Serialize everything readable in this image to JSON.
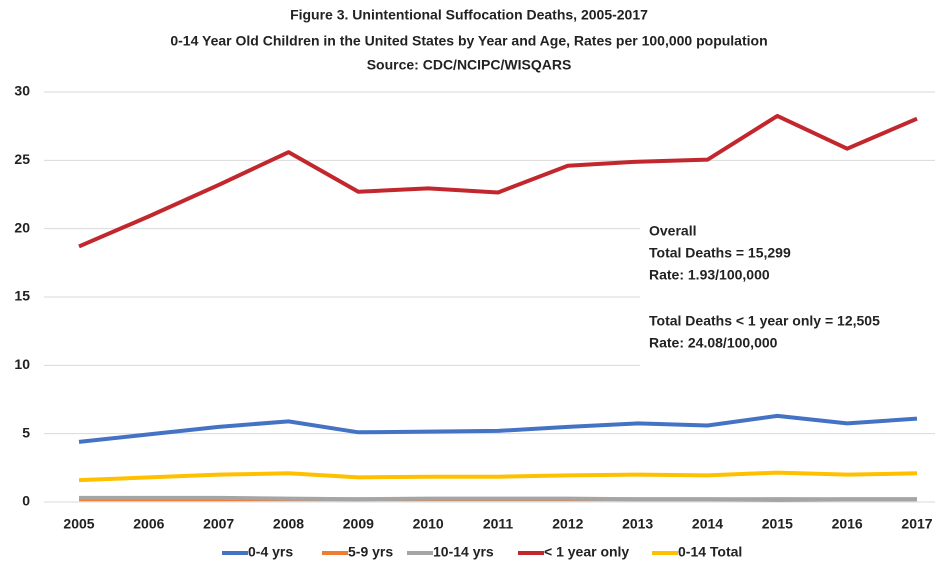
{
  "chart_data": {
    "type": "line",
    "title": [
      "Figure 3. Unintentional Suffocation Deaths, 2005-2017",
      "0-14 Year Old Children in the United States by Year and Age, Rates per 100,000 population",
      "Source: CDC/NCIPC/WISQARS"
    ],
    "categories": [
      "2005",
      "2006",
      "2007",
      "2008",
      "2009",
      "2010",
      "2011",
      "2012",
      "2013",
      "2014",
      "2015",
      "2016",
      "2017"
    ],
    "series": [
      {
        "name": "0-4 yrs",
        "color": "#4472c4",
        "values": [
          4.4,
          4.95,
          5.5,
          5.9,
          5.1,
          5.15,
          5.2,
          5.5,
          5.75,
          5.6,
          6.3,
          5.75,
          6.1
        ]
      },
      {
        "name": "5-9 yrs",
        "color": "#ed7d31",
        "values": [
          0.2,
          0.2,
          0.2,
          0.2,
          0.2,
          0.2,
          0.2,
          0.2,
          0.2,
          0.2,
          0.2,
          0.2,
          0.2
        ]
      },
      {
        "name": "10-14 yrs",
        "color": "#a5a5a5",
        "values": [
          0.3,
          0.3,
          0.3,
          0.25,
          0.2,
          0.25,
          0.25,
          0.25,
          0.2,
          0.2,
          0.15,
          0.2,
          0.2
        ]
      },
      {
        "name": "< 1 year only",
        "color": "#c1272d",
        "values": [
          18.7,
          20.9,
          23.2,
          25.6,
          22.7,
          22.95,
          22.65,
          24.6,
          24.9,
          25.05,
          28.25,
          25.85,
          28.05
        ]
      },
      {
        "name": "0-14 Total",
        "color": "#ffc000",
        "values": [
          1.6,
          1.8,
          2.0,
          2.1,
          1.8,
          1.85,
          1.85,
          1.95,
          2.0,
          1.95,
          2.15,
          2.0,
          2.1
        ]
      }
    ],
    "ylim": [
      0,
      30
    ],
    "yticks": [
      0,
      5,
      10,
      15,
      20,
      25,
      30
    ],
    "grid": true,
    "annotation": [
      "Overall",
      "Total Deaths = 15,299",
      "Rate: 1.93/100,000",
      "Total Deaths < 1 year only = 12,505",
      "Rate: 24.08/100,000"
    ]
  }
}
